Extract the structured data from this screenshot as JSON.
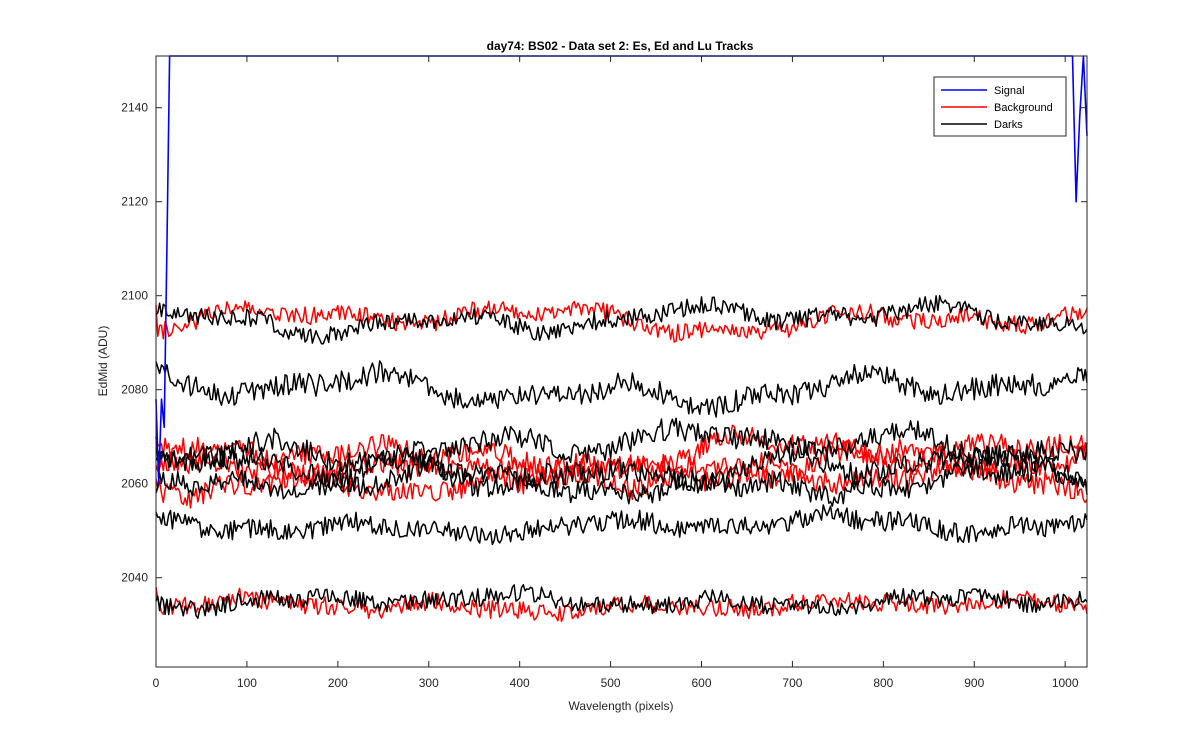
{
  "chart_data": {
    "type": "line",
    "title": "day74: BS02 - Data set 2: Es, Ed and Lu Tracks",
    "xlabel": "Wavelength (pixels)",
    "ylabel": "EdMid (ADU)",
    "xlim": [
      0,
      1024
    ],
    "ylim": [
      2021,
      2151
    ],
    "xticks": [
      0,
      100,
      200,
      300,
      400,
      500,
      600,
      700,
      800,
      900,
      1000
    ],
    "yticks": [
      2040,
      2060,
      2080,
      2100,
      2120,
      2140
    ],
    "grid": false,
    "legend_position": "top-right",
    "legend": [
      {
        "label": "Signal",
        "color": "#0000ff"
      },
      {
        "label": "Background",
        "color": "#ff0000"
      },
      {
        "label": "Darks",
        "color": "#000000"
      }
    ],
    "series": [
      {
        "name": "Signal",
        "color": "#0000ff",
        "kind": "signal",
        "points": [
          [
            0,
            2078
          ],
          [
            3,
            2060
          ],
          [
            6,
            2078
          ],
          [
            9,
            2072
          ],
          [
            12,
            2110
          ],
          [
            15,
            2151
          ],
          [
            1008,
            2151
          ],
          [
            1012,
            2120
          ],
          [
            1016,
            2138
          ],
          [
            1020,
            2151
          ],
          [
            1024,
            2134
          ]
        ]
      },
      {
        "name": "Background",
        "color": "#ff0000",
        "base": 2095,
        "amp": 3.0,
        "noise": 1.2,
        "seed": 11,
        "start": [
          0,
          2098
        ]
      },
      {
        "name": "Background",
        "color": "#ff0000",
        "base": 2066,
        "amp": 4.0,
        "noise": 1.5,
        "seed": 12,
        "start": [
          0,
          2070
        ]
      },
      {
        "name": "Background",
        "color": "#ff0000",
        "base": 2064,
        "amp": 4.0,
        "noise": 1.5,
        "seed": 13,
        "start": [
          0,
          2064
        ]
      },
      {
        "name": "Background",
        "color": "#ff0000",
        "base": 2061,
        "amp": 3.5,
        "noise": 1.5,
        "seed": 14,
        "start": [
          0,
          2061
        ]
      },
      {
        "name": "Background",
        "color": "#ff0000",
        "base": 2034,
        "amp": 1.5,
        "noise": 1.2,
        "seed": 15,
        "start": [
          0,
          2038
        ]
      },
      {
        "name": "Darks",
        "color": "#000000",
        "base": 2095,
        "amp": 3.0,
        "noise": 1.2,
        "seed": 21,
        "start": [
          0,
          2096
        ]
      },
      {
        "name": "Darks",
        "color": "#000000",
        "base": 2080,
        "amp": 3.5,
        "noise": 1.5,
        "seed": 22,
        "start": [
          0,
          2086
        ]
      },
      {
        "name": "Darks",
        "color": "#000000",
        "base": 2068,
        "amp": 3.5,
        "noise": 1.5,
        "seed": 23,
        "start": [
          0,
          2070
        ]
      },
      {
        "name": "Darks",
        "color": "#000000",
        "base": 2063,
        "amp": 3.5,
        "noise": 1.5,
        "seed": 24,
        "start": [
          0,
          2065
        ]
      },
      {
        "name": "Darks",
        "color": "#000000",
        "base": 2060,
        "amp": 3.0,
        "noise": 1.4,
        "seed": 25,
        "start": [
          0,
          2058
        ]
      },
      {
        "name": "Darks",
        "color": "#000000",
        "base": 2051,
        "amp": 2.0,
        "noise": 1.3,
        "seed": 26,
        "start": [
          0,
          2054
        ]
      },
      {
        "name": "Darks",
        "color": "#000000",
        "base": 2035,
        "amp": 1.5,
        "noise": 1.2,
        "seed": 27,
        "start": [
          0,
          2035
        ]
      }
    ]
  }
}
